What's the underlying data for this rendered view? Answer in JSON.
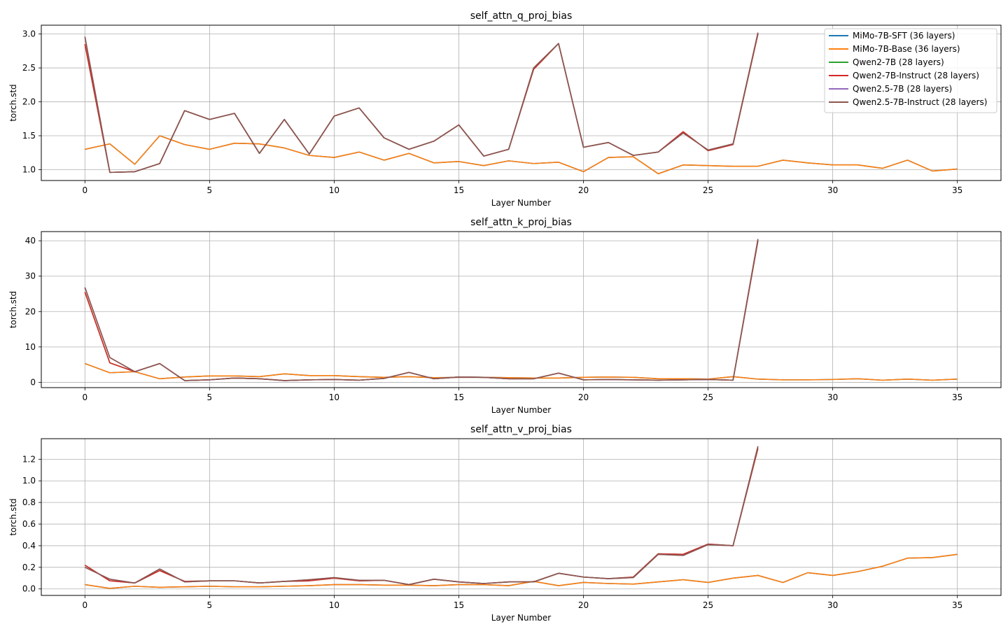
{
  "legend": {
    "placement": "top-right",
    "panel": 0,
    "entries": [
      {
        "name": "MiMo-7B-SFT (36 layers)",
        "color": "#1f77b4"
      },
      {
        "name": "MiMo-7B-Base (36 layers)",
        "color": "#ff7f0e"
      },
      {
        "name": "Qwen2-7B (28 layers)",
        "color": "#2ca02c"
      },
      {
        "name": "Qwen2-7B-Instruct (28 layers)",
        "color": "#d62728"
      },
      {
        "name": "Qwen2.5-7B (28 layers)",
        "color": "#9467bd"
      },
      {
        "name": "Qwen2.5-7B-Instruct (28 layers)",
        "color": "#8c564b"
      }
    ]
  },
  "chart_data": [
    {
      "type": "line",
      "title": "self_attn_q_proj_bias",
      "xlabel": "Layer Number",
      "ylabel": "torch.std",
      "xlim": [
        -1.75,
        36.75
      ],
      "ylim": [
        0.84,
        3.13
      ],
      "xticks": [
        0,
        5,
        10,
        15,
        20,
        25,
        30,
        35
      ],
      "yticks": [
        1.0,
        1.5,
        2.0,
        2.5,
        3.0
      ],
      "ytick_labels": [
        "1.0",
        "1.5",
        "2.0",
        "2.5",
        "3.0"
      ],
      "grid": true,
      "series": [
        {
          "name": "MiMo-7B-SFT (36 layers)",
          "color": "#1f77b4",
          "values": [
            1.3,
            1.38,
            1.08,
            1.5,
            1.37,
            1.3,
            1.39,
            1.38,
            1.32,
            1.21,
            1.18,
            1.26,
            1.14,
            1.24,
            1.1,
            1.12,
            1.06,
            1.13,
            1.09,
            1.11,
            0.97,
            1.18,
            1.19,
            0.94,
            1.07,
            1.06,
            1.05,
            1.05,
            1.14,
            1.1,
            1.07,
            1.07,
            1.02,
            1.14,
            0.98,
            1.01
          ]
        },
        {
          "name": "MiMo-7B-Base (36 layers)",
          "color": "#ff7f0e",
          "values": [
            1.3,
            1.38,
            1.08,
            1.5,
            1.37,
            1.3,
            1.39,
            1.38,
            1.32,
            1.21,
            1.18,
            1.26,
            1.14,
            1.24,
            1.1,
            1.12,
            1.06,
            1.13,
            1.09,
            1.11,
            0.97,
            1.18,
            1.19,
            0.94,
            1.07,
            1.06,
            1.05,
            1.05,
            1.14,
            1.1,
            1.07,
            1.07,
            1.02,
            1.14,
            0.98,
            1.01
          ]
        },
        {
          "name": "Qwen2-7B (28 layers)",
          "color": "#2ca02c",
          "values": [
            2.85,
            0.96,
            0.97,
            1.09,
            1.87,
            1.74,
            1.83,
            1.24,
            1.74,
            1.23,
            1.79,
            1.91,
            1.47,
            1.3,
            1.42,
            1.66,
            1.2,
            1.3,
            2.48,
            2.86,
            1.33,
            1.4,
            1.21,
            1.26,
            1.56,
            1.28,
            1.37,
            3.0
          ]
        },
        {
          "name": "Qwen2-7B-Instruct (28 layers)",
          "color": "#d62728",
          "values": [
            2.85,
            0.96,
            0.97,
            1.09,
            1.87,
            1.74,
            1.83,
            1.24,
            1.74,
            1.23,
            1.79,
            1.91,
            1.47,
            1.3,
            1.42,
            1.66,
            1.2,
            1.3,
            2.48,
            2.86,
            1.33,
            1.4,
            1.21,
            1.26,
            1.56,
            1.28,
            1.37,
            3.0
          ]
        },
        {
          "name": "Qwen2.5-7B (28 layers)",
          "color": "#9467bd",
          "values": [
            2.96,
            0.96,
            0.97,
            1.09,
            1.87,
            1.74,
            1.83,
            1.24,
            1.74,
            1.23,
            1.79,
            1.91,
            1.47,
            1.3,
            1.42,
            1.66,
            1.2,
            1.3,
            2.5,
            2.86,
            1.33,
            1.4,
            1.21,
            1.26,
            1.54,
            1.29,
            1.38,
            3.02
          ]
        },
        {
          "name": "Qwen2.5-7B-Instruct (28 layers)",
          "color": "#8c564b",
          "values": [
            2.96,
            0.96,
            0.97,
            1.09,
            1.87,
            1.74,
            1.83,
            1.24,
            1.74,
            1.23,
            1.79,
            1.91,
            1.47,
            1.3,
            1.42,
            1.66,
            1.2,
            1.3,
            2.5,
            2.86,
            1.33,
            1.4,
            1.21,
            1.26,
            1.54,
            1.29,
            1.38,
            3.02
          ]
        }
      ]
    },
    {
      "type": "line",
      "title": "self_attn_k_proj_bias",
      "xlabel": "Layer Number",
      "ylabel": "torch.std",
      "xlim": [
        -1.75,
        36.75
      ],
      "ylim": [
        -1.5,
        42.6
      ],
      "xticks": [
        0,
        5,
        10,
        15,
        20,
        25,
        30,
        35
      ],
      "yticks": [
        0,
        10,
        20,
        30,
        40
      ],
      "ytick_labels": [
        "0",
        "10",
        "20",
        "30",
        "40"
      ],
      "grid": true,
      "series": [
        {
          "name": "MiMo-7B-SFT (36 layers)",
          "color": "#1f77b4",
          "values": [
            5.3,
            2.7,
            3.0,
            1.0,
            1.5,
            1.8,
            1.8,
            1.6,
            2.4,
            1.9,
            1.9,
            1.6,
            1.4,
            1.6,
            1.3,
            1.4,
            1.4,
            1.3,
            1.2,
            1.2,
            1.4,
            1.5,
            1.4,
            1.0,
            1.0,
            0.9,
            1.6,
            0.9,
            0.7,
            0.7,
            0.8,
            1.0,
            0.6,
            0.9,
            0.6,
            0.9
          ]
        },
        {
          "name": "MiMo-7B-Base (36 layers)",
          "color": "#ff7f0e",
          "values": [
            5.3,
            2.7,
            3.0,
            1.0,
            1.5,
            1.8,
            1.8,
            1.6,
            2.4,
            1.9,
            1.9,
            1.6,
            1.4,
            1.6,
            1.3,
            1.4,
            1.4,
            1.3,
            1.2,
            1.2,
            1.4,
            1.5,
            1.4,
            1.0,
            1.0,
            0.9,
            1.6,
            0.9,
            0.7,
            0.7,
            0.8,
            1.0,
            0.6,
            0.9,
            0.6,
            0.9
          ]
        },
        {
          "name": "Qwen2-7B (28 layers)",
          "color": "#2ca02c",
          "values": [
            25.5,
            5.5,
            3.0,
            5.3,
            0.5,
            0.7,
            1.2,
            1.0,
            0.5,
            0.7,
            0.8,
            0.6,
            1.1,
            2.8,
            1.0,
            1.5,
            1.4,
            1.0,
            1.0,
            2.6,
            0.7,
            0.8,
            0.7,
            0.6,
            0.7,
            0.8,
            0.6,
            40.0
          ]
        },
        {
          "name": "Qwen2-7B-Instruct (28 layers)",
          "color": "#d62728",
          "values": [
            25.5,
            5.5,
            3.0,
            5.3,
            0.5,
            0.7,
            1.2,
            1.0,
            0.5,
            0.7,
            0.8,
            0.6,
            1.1,
            2.8,
            1.0,
            1.5,
            1.4,
            1.0,
            1.0,
            2.6,
            0.7,
            0.8,
            0.7,
            0.6,
            0.7,
            0.8,
            0.6,
            40.0
          ]
        },
        {
          "name": "Qwen2.5-7B (28 layers)",
          "color": "#9467bd",
          "values": [
            26.8,
            7.0,
            3.0,
            5.3,
            0.5,
            0.7,
            1.2,
            1.0,
            0.5,
            0.7,
            0.8,
            0.6,
            1.1,
            2.8,
            1.0,
            1.5,
            1.4,
            1.0,
            1.0,
            2.6,
            0.7,
            0.8,
            0.7,
            0.6,
            0.7,
            0.8,
            0.6,
            40.5
          ]
        },
        {
          "name": "Qwen2.5-7B-Instruct (28 layers)",
          "color": "#8c564b",
          "values": [
            26.8,
            7.0,
            3.0,
            5.3,
            0.5,
            0.7,
            1.2,
            1.0,
            0.5,
            0.7,
            0.8,
            0.6,
            1.1,
            2.8,
            1.0,
            1.5,
            1.4,
            1.0,
            1.0,
            2.6,
            0.7,
            0.8,
            0.7,
            0.6,
            0.7,
            0.8,
            0.6,
            40.5
          ]
        }
      ]
    },
    {
      "type": "line",
      "title": "self_attn_v_proj_bias",
      "xlabel": "Layer Number",
      "ylabel": "torch.std",
      "xlim": [
        -1.75,
        36.75
      ],
      "ylim": [
        -0.06,
        1.39
      ],
      "xticks": [
        0,
        5,
        10,
        15,
        20,
        25,
        30,
        35
      ],
      "yticks": [
        0.0,
        0.2,
        0.4,
        0.6,
        0.8,
        1.0,
        1.2
      ],
      "ytick_labels": [
        "0.0",
        "0.2",
        "0.4",
        "0.6",
        "0.8",
        "1.0",
        "1.2"
      ],
      "grid": true,
      "series": [
        {
          "name": "MiMo-7B-SFT (36 layers)",
          "color": "#1f77b4",
          "values": [
            0.04,
            0.005,
            0.025,
            0.015,
            0.02,
            0.025,
            0.02,
            0.02,
            0.025,
            0.03,
            0.04,
            0.04,
            0.035,
            0.035,
            0.03,
            0.04,
            0.04,
            0.03,
            0.07,
            0.03,
            0.06,
            0.05,
            0.045,
            0.065,
            0.085,
            0.06,
            0.1,
            0.125,
            0.06,
            0.15,
            0.125,
            0.16,
            0.21,
            0.285,
            0.29,
            0.32
          ]
        },
        {
          "name": "MiMo-7B-Base (36 layers)",
          "color": "#ff7f0e",
          "values": [
            0.04,
            0.005,
            0.025,
            0.015,
            0.02,
            0.025,
            0.02,
            0.02,
            0.025,
            0.03,
            0.04,
            0.04,
            0.035,
            0.035,
            0.03,
            0.04,
            0.04,
            0.03,
            0.07,
            0.03,
            0.06,
            0.05,
            0.045,
            0.065,
            0.085,
            0.06,
            0.1,
            0.125,
            0.06,
            0.15,
            0.125,
            0.16,
            0.21,
            0.285,
            0.29,
            0.32
          ]
        },
        {
          "name": "Qwen2-7B (28 layers)",
          "color": "#2ca02c",
          "values": [
            0.22,
            0.075,
            0.055,
            0.17,
            0.07,
            0.075,
            0.075,
            0.055,
            0.07,
            0.075,
            0.1,
            0.075,
            0.08,
            0.04,
            0.09,
            0.065,
            0.05,
            0.065,
            0.065,
            0.145,
            0.11,
            0.095,
            0.11,
            0.325,
            0.32,
            0.415,
            0.4,
            1.3
          ]
        },
        {
          "name": "Qwen2-7B-Instruct (28 layers)",
          "color": "#d62728",
          "values": [
            0.22,
            0.075,
            0.055,
            0.17,
            0.07,
            0.075,
            0.075,
            0.055,
            0.07,
            0.075,
            0.1,
            0.075,
            0.08,
            0.04,
            0.09,
            0.065,
            0.05,
            0.065,
            0.065,
            0.145,
            0.11,
            0.095,
            0.11,
            0.325,
            0.32,
            0.415,
            0.4,
            1.3
          ]
        },
        {
          "name": "Qwen2.5-7B (28 layers)",
          "color": "#9467bd",
          "values": [
            0.2,
            0.09,
            0.055,
            0.185,
            0.065,
            0.075,
            0.075,
            0.055,
            0.07,
            0.085,
            0.105,
            0.08,
            0.08,
            0.04,
            0.09,
            0.065,
            0.05,
            0.065,
            0.065,
            0.145,
            0.11,
            0.095,
            0.105,
            0.32,
            0.31,
            0.41,
            0.4,
            1.32
          ]
        },
        {
          "name": "Qwen2.5-7B-Instruct (28 layers)",
          "color": "#8c564b",
          "values": [
            0.2,
            0.09,
            0.055,
            0.185,
            0.065,
            0.075,
            0.075,
            0.055,
            0.07,
            0.085,
            0.105,
            0.08,
            0.08,
            0.04,
            0.09,
            0.065,
            0.05,
            0.065,
            0.065,
            0.145,
            0.11,
            0.095,
            0.105,
            0.32,
            0.31,
            0.41,
            0.4,
            1.32
          ]
        }
      ]
    }
  ]
}
